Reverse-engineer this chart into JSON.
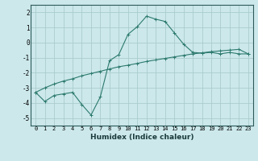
{
  "xlabel": "Humidex (Indice chaleur)",
  "x": [
    0,
    1,
    2,
    3,
    4,
    5,
    6,
    7,
    8,
    9,
    10,
    11,
    12,
    13,
    14,
    15,
    16,
    17,
    18,
    19,
    20,
    21,
    22,
    23
  ],
  "y_curve": [
    -3.3,
    -3.9,
    -3.5,
    -3.4,
    -3.3,
    -4.1,
    -4.8,
    -3.6,
    -1.2,
    -0.8,
    0.55,
    1.05,
    1.75,
    1.55,
    1.4,
    0.65,
    -0.1,
    -0.65,
    -0.7,
    -0.65,
    -0.75,
    -0.65,
    -0.75,
    -0.75
  ],
  "y_line": [
    -3.3,
    -3.0,
    -2.75,
    -2.55,
    -2.4,
    -2.2,
    -2.05,
    -1.9,
    -1.75,
    -1.6,
    -1.5,
    -1.38,
    -1.25,
    -1.15,
    -1.05,
    -0.95,
    -0.85,
    -0.75,
    -0.68,
    -0.6,
    -0.55,
    -0.5,
    -0.45,
    -0.75
  ],
  "line_color": "#2d7a6e",
  "bg_color": "#cce8eb",
  "grid_color": "#aacccc",
  "ylim": [
    -5.5,
    2.5
  ],
  "xlim": [
    -0.5,
    23.5
  ],
  "yticks": [
    -5,
    -4,
    -3,
    -2,
    -1,
    0,
    1,
    2
  ],
  "xtick_labels": [
    "0",
    "1",
    "2",
    "3",
    "4",
    "5",
    "6",
    "7",
    "8",
    "9",
    "10",
    "11",
    "12",
    "13",
    "14",
    "15",
    "16",
    "17",
    "18",
    "19",
    "20",
    "21",
    "22",
    "23"
  ]
}
